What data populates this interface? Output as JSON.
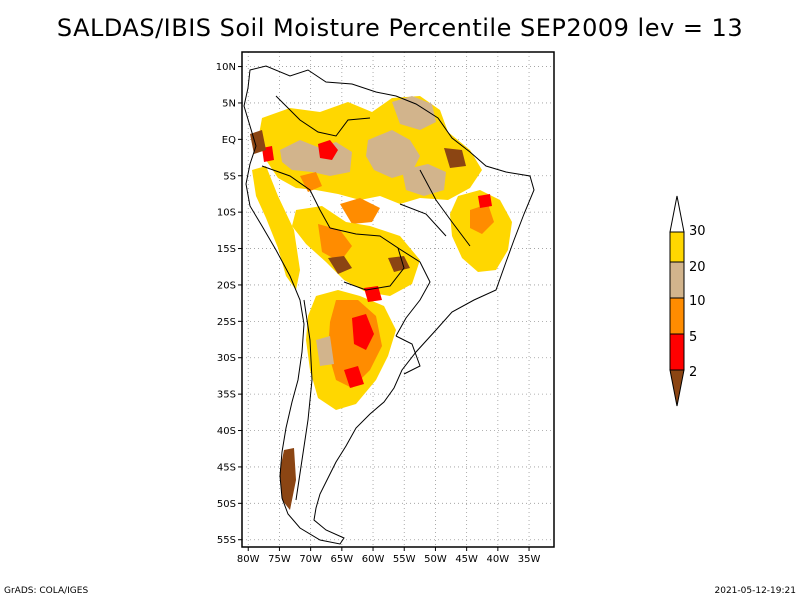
{
  "title": "SALDAS/IBIS Soil Moisture Percentile SEP2009 lev = 13",
  "footer": {
    "left": "GrADS: COLA/IGES",
    "right": "2021-05-12-19:21"
  },
  "map": {
    "lat_labels": [
      "10N",
      "5N",
      "EQ",
      "5S",
      "10S",
      "15S",
      "20S",
      "25S",
      "30S",
      "35S",
      "40S",
      "45S",
      "50S",
      "55S"
    ],
    "lat_values": [
      10,
      5,
      0,
      -5,
      -10,
      -15,
      -20,
      -25,
      -30,
      -35,
      -40,
      -45,
      -50,
      -55
    ],
    "lon_labels": [
      "80W",
      "75W",
      "70W",
      "65W",
      "60W",
      "55W",
      "50W",
      "45W",
      "40W",
      "35W"
    ],
    "lon_values": [
      -80,
      -75,
      -70,
      -65,
      -60,
      -55,
      -50,
      -45,
      -40,
      -35
    ],
    "lon_range": [
      -81,
      -31
    ],
    "lat_range": [
      -56,
      12
    ],
    "grid": true
  },
  "legend": {
    "orientation": "vertical",
    "placement": "right",
    "labels": [
      "2",
      "5",
      "10",
      "20",
      "30"
    ],
    "colors": {
      "below_2": "#8b4513",
      "2_5": "#ff0000",
      "5_10": "#ff8c00",
      "10_20": "#d2b48c",
      "20_30": "#ffd700",
      "above_30": "#ffffff"
    }
  }
}
